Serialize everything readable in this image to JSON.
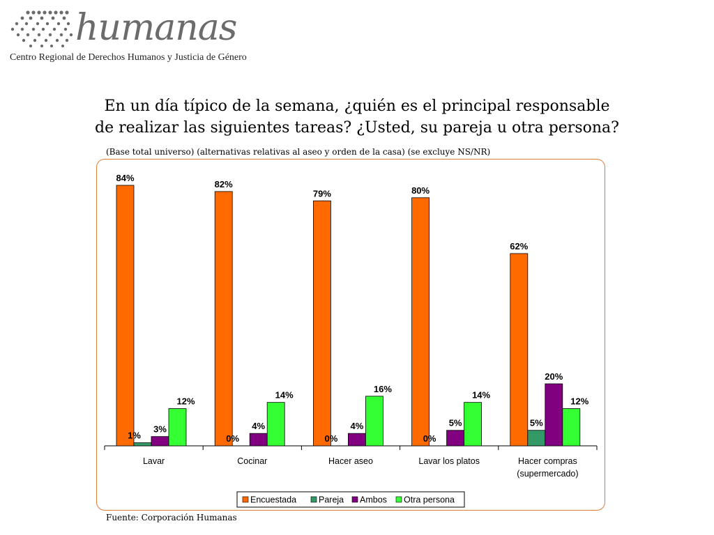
{
  "logo": {
    "wordmark": "humanas",
    "tagline": "Centro Regional de Derechos Humanos y Justicia de Género"
  },
  "title": {
    "line1": "En un día típico de la semana, ¿quién es el principal responsable",
    "line2": "de realizar las siguientes tareas? ¿Usted, su pareja u otra persona?"
  },
  "subtitle": "(Base total universo) (alternativas relativas al aseo y orden de la casa) (se excluye NS/NR)",
  "source": "Fuente: Corporación Humanas",
  "colors": {
    "frame": "#e07b39",
    "encuestada": "#ff6a00",
    "pareja": "#339966",
    "ambos": "#800080",
    "otra": "#33ff33"
  },
  "chart_data": {
    "type": "bar",
    "categories": [
      "Lavar",
      "Cocinar",
      "Hacer aseo",
      "Lavar los platos",
      "Hacer compras (supermercado)"
    ],
    "series": [
      {
        "name": "Encuestada",
        "values": [
          84,
          82,
          79,
          80,
          62
        ],
        "labels": [
          "84%",
          "82%",
          "79%",
          "80%",
          "62%"
        ]
      },
      {
        "name": "Pareja",
        "values": [
          1,
          0,
          0,
          0,
          5
        ],
        "labels": [
          "1%",
          "0%",
          "0%",
          "0%",
          "5%"
        ]
      },
      {
        "name": "Ambos",
        "values": [
          3,
          4,
          4,
          5,
          20
        ],
        "labels": [
          "3%",
          "4%",
          "4%",
          "5%",
          "20%"
        ]
      },
      {
        "name": "Otra persona",
        "values": [
          12,
          14,
          16,
          14,
          12
        ],
        "labels": [
          "12%",
          "14%",
          "16%",
          "14%",
          "12%"
        ]
      }
    ],
    "ylim": [
      0,
      84
    ],
    "grid": false,
    "legend": "bottom"
  }
}
